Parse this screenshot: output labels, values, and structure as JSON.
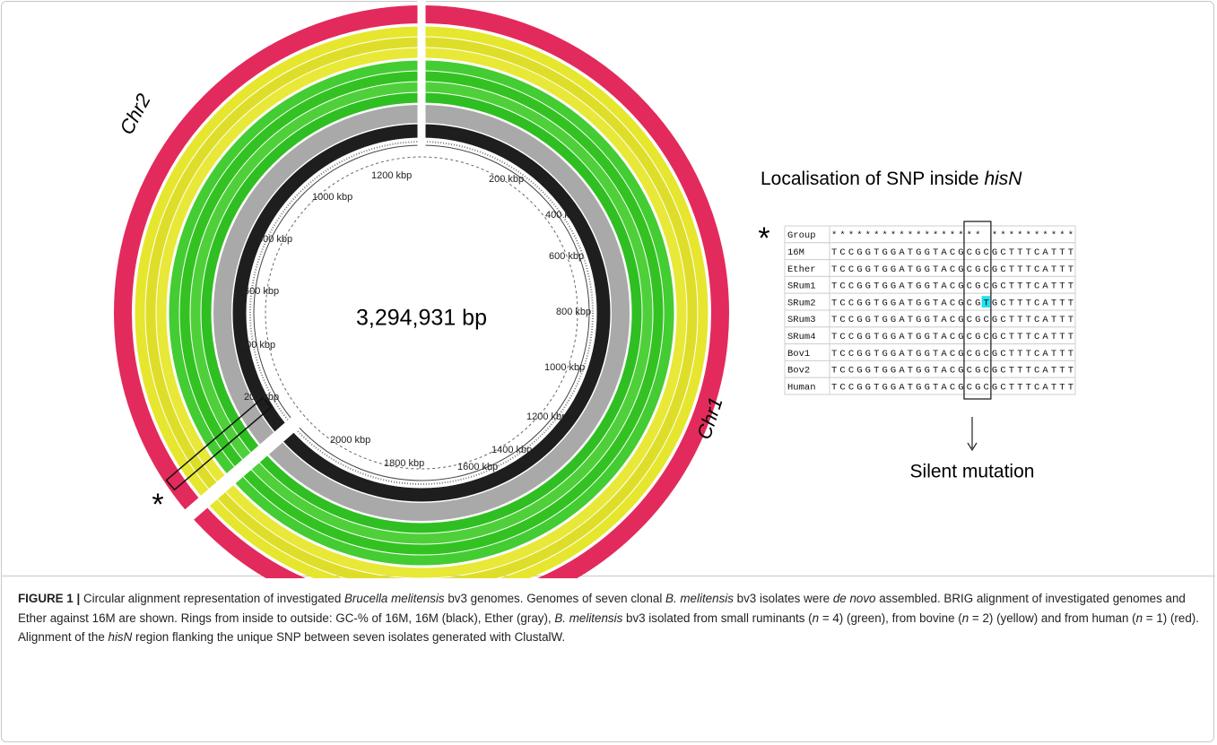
{
  "figure": {
    "genome_size": "3,294,931 bp",
    "chromosomes": [
      "Chr1",
      "Chr2"
    ],
    "marker": "*",
    "chr1_ticks": [
      "200 kbp",
      "400 kbp",
      "600 kbp",
      "800 kbp",
      "1000 kbp",
      "1200 kbp",
      "1400 kbp",
      "1600 kbp",
      "1800 kbp",
      "2000 kbp"
    ],
    "chr2_ticks": [
      "200 kbp",
      "400 kbp",
      "600 kbp",
      "800 kbp",
      "1000 kbp",
      "1200 kbp"
    ]
  },
  "alignment": {
    "title": [
      "Localisation of SNP inside ",
      "hisN"
    ],
    "marker": "*",
    "rows": [
      [
        "Group",
        "****************** **********"
      ],
      [
        "16M",
        "TCCGGTGGATGGTACGCGCGCTTTCATTT"
      ],
      [
        "Ether",
        "TCCGGTGGATGGTACGCGCGCTTTCATTT"
      ],
      [
        "SRum1",
        "TCCGGTGGATGGTACGCGCGCTTTCATTT"
      ],
      [
        "SRum2",
        "TCCGGTGGATGGTACGCGTGCTTTCATTT"
      ],
      [
        "SRum3",
        "TCCGGTGGATGGTACGCGCGCTTTCATTT"
      ],
      [
        "SRum4",
        "TCCGGTGGATGGTACGCGCGCTTTCATTT"
      ],
      [
        "Bov1",
        "TCCGGTGGATGGTACGCGCGCTTTCATTT"
      ],
      [
        "Bov2",
        "TCCGGTGGATGGTACGCGCGCTTTCATTT"
      ],
      [
        "Human",
        "TCCGGTGGATGGTACGCGCGCTTTCATTT"
      ]
    ],
    "annotation": "Silent mutation"
  },
  "caption": {
    "label": "FIGURE 1 |",
    "parts": [
      " Circular alignment representation of investigated ",
      "Brucella melitensis",
      " bv3 genomes. Genomes of seven clonal ",
      "B. melitensis",
      " bv3 isolates were ",
      "de novo",
      " assembled. BRIG alignment of investigated genomes and Ether against 16M are shown. Rings from inside to outside: GC-% of 16M, 16M (black), Ether (gray), ",
      "B. melitensis",
      " bv3 isolated from small ruminants (",
      "n",
      " = 4) (green), from bovine (",
      "n",
      " = 2) (yellow) and from human (",
      "n",
      " = 1) (red). Alignment of the ",
      "hisN",
      " region flanking the unique SNP between seven isolates generated with ClustalW."
    ]
  }
}
